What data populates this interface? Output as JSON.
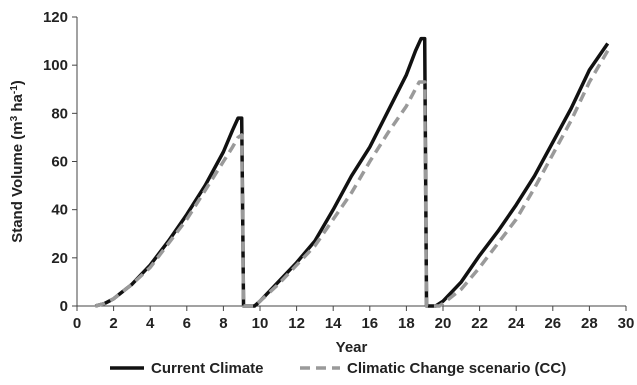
{
  "chart_data": {
    "type": "line",
    "title": "",
    "xlabel": "Year",
    "ylabel": "Stand Volume (m³ ha⁻¹)",
    "ylabel_parts": {
      "base": "Stand Volume (m",
      "sup1": "3",
      "mid": " ha",
      "sup2": "-1",
      "end": ")"
    },
    "xlim": [
      0,
      30
    ],
    "ylim": [
      0,
      120
    ],
    "xticks": [
      0,
      2,
      4,
      6,
      8,
      10,
      12,
      14,
      16,
      18,
      20,
      22,
      24,
      26,
      28,
      30
    ],
    "yticks": [
      0,
      20,
      40,
      60,
      80,
      100,
      120
    ],
    "grid": false,
    "legend_position": "bottom",
    "series": [
      {
        "name": "Current Climate",
        "color": "#111111",
        "style": "solid",
        "points": [
          [
            1,
            0
          ],
          [
            1.5,
            1
          ],
          [
            2,
            3
          ],
          [
            3,
            9
          ],
          [
            4,
            17
          ],
          [
            5,
            27
          ],
          [
            6,
            38
          ],
          [
            7,
            50
          ],
          [
            8,
            64
          ],
          [
            8.5,
            73
          ],
          [
            8.8,
            78
          ],
          [
            9.0,
            78
          ],
          [
            9.05,
            40
          ],
          [
            9.1,
            0
          ],
          [
            9.7,
            0
          ],
          [
            10,
            2
          ],
          [
            11,
            10
          ],
          [
            12,
            18
          ],
          [
            13,
            27
          ],
          [
            14,
            40
          ],
          [
            15,
            54
          ],
          [
            16,
            66
          ],
          [
            17,
            81
          ],
          [
            18,
            96
          ],
          [
            18.5,
            106
          ],
          [
            18.8,
            111
          ],
          [
            19.0,
            111
          ],
          [
            19.05,
            55
          ],
          [
            19.1,
            0
          ],
          [
            19.6,
            0
          ],
          [
            20,
            2
          ],
          [
            21,
            10
          ],
          [
            22,
            21
          ],
          [
            23,
            31
          ],
          [
            24,
            42
          ],
          [
            25,
            54
          ],
          [
            26,
            68
          ],
          [
            27,
            82
          ],
          [
            28,
            98
          ],
          [
            29,
            109
          ]
        ]
      },
      {
        "name": "Climatic Change scenario (CC)",
        "color": "#9a9a9a",
        "style": "dashed",
        "points": [
          [
            1,
            0
          ],
          [
            1.5,
            1
          ],
          [
            2,
            3
          ],
          [
            3,
            9
          ],
          [
            4,
            16
          ],
          [
            5,
            26
          ],
          [
            6,
            36
          ],
          [
            7,
            48
          ],
          [
            8,
            60
          ],
          [
            8.5,
            66
          ],
          [
            8.8,
            70
          ],
          [
            9.0,
            71
          ],
          [
            9.05,
            35
          ],
          [
            9.1,
            0
          ],
          [
            9.7,
            0
          ],
          [
            10,
            2
          ],
          [
            11,
            9
          ],
          [
            12,
            17
          ],
          [
            13,
            25
          ],
          [
            14,
            36
          ],
          [
            15,
            47
          ],
          [
            16,
            60
          ],
          [
            17,
            72
          ],
          [
            18,
            83
          ],
          [
            18.7,
            93
          ],
          [
            19.0,
            93
          ],
          [
            19.05,
            45
          ],
          [
            19.1,
            0
          ],
          [
            19.8,
            0
          ],
          [
            20,
            1
          ],
          [
            21,
            7
          ],
          [
            22,
            16
          ],
          [
            23,
            26
          ],
          [
            24,
            36
          ],
          [
            25,
            49
          ],
          [
            26,
            63
          ],
          [
            27,
            77
          ],
          [
            28,
            93
          ],
          [
            29,
            106
          ]
        ]
      }
    ]
  }
}
